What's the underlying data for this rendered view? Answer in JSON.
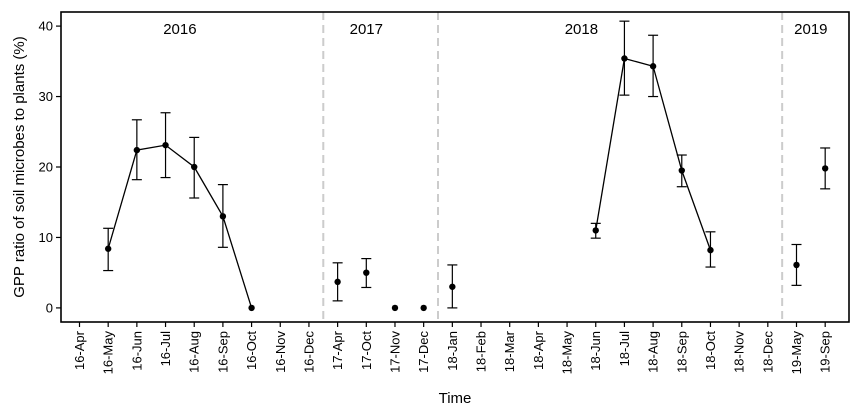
{
  "chart_data": {
    "type": "scatter",
    "xlabel": "Time",
    "ylabel": "GPP ratio of soil microbes to plants (%)",
    "ylim": [
      -2,
      42
    ],
    "y_ticks": [
      0,
      10,
      20,
      30,
      40
    ],
    "categories": [
      "16-Apr",
      "16-May",
      "16-Jun",
      "16-Jul",
      "16-Aug",
      "16-Sep",
      "16-Oct",
      "16-Nov",
      "16-Dec",
      "17-Apr",
      "17-Oct",
      "17-Nov",
      "17-Dec",
      "18-Jan",
      "18-Feb",
      "18-Mar",
      "18-Apr",
      "18-May",
      "18-Jun",
      "18-Jul",
      "18-Aug",
      "18-Sep",
      "18-Oct",
      "18-Nov",
      "18-Dec",
      "19-May",
      "19-Sep"
    ],
    "year_labels": [
      {
        "label": "2016",
        "center_category": 3.5
      },
      {
        "label": "2017",
        "center_category": 10
      },
      {
        "label": "2018",
        "center_category": 17.5
      },
      {
        "label": "2019",
        "center_category": 25.5
      }
    ],
    "dividers_after_category": [
      8,
      12,
      24
    ],
    "grid": false,
    "points": [
      {
        "x": "16-May",
        "y": 8.4,
        "low": 5.3,
        "high": 11.3
      },
      {
        "x": "16-Jun",
        "y": 22.4,
        "low": 18.2,
        "high": 26.7
      },
      {
        "x": "16-Jul",
        "y": 23.1,
        "low": 18.5,
        "high": 27.7
      },
      {
        "x": "16-Aug",
        "y": 20.0,
        "low": 15.6,
        "high": 24.2
      },
      {
        "x": "16-Sep",
        "y": 13.0,
        "low": 8.6,
        "high": 17.5
      },
      {
        "x": "16-Oct",
        "y": 0.0,
        "low": 0.0,
        "high": 0.0
      },
      {
        "x": "17-Apr",
        "y": 3.7,
        "low": 1.0,
        "high": 6.4
      },
      {
        "x": "17-Oct",
        "y": 5.0,
        "low": 2.9,
        "high": 7.0
      },
      {
        "x": "17-Nov",
        "y": 0.0,
        "low": 0.0,
        "high": 0.0
      },
      {
        "x": "17-Dec",
        "y": 0.0,
        "low": 0.0,
        "high": 0.0
      },
      {
        "x": "18-Jan",
        "y": 3.0,
        "low": 0.0,
        "high": 6.1
      },
      {
        "x": "18-Jun",
        "y": 11.0,
        "low": 9.9,
        "high": 12.0
      },
      {
        "x": "18-Jul",
        "y": 35.4,
        "low": 30.2,
        "high": 40.7
      },
      {
        "x": "18-Aug",
        "y": 34.3,
        "low": 30.0,
        "high": 38.7
      },
      {
        "x": "18-Sep",
        "y": 19.5,
        "low": 17.2,
        "high": 21.7
      },
      {
        "x": "18-Oct",
        "y": 8.2,
        "low": 5.8,
        "high": 10.8
      },
      {
        "x": "19-May",
        "y": 6.1,
        "low": 3.2,
        "high": 9.0
      },
      {
        "x": "19-Sep",
        "y": 19.8,
        "low": 16.9,
        "high": 22.7
      }
    ],
    "connected_lines": [
      [
        "16-May",
        "16-Jun",
        "16-Jul",
        "16-Aug",
        "16-Sep",
        "16-Oct"
      ],
      [
        "18-Jun",
        "18-Jul",
        "18-Aug",
        "18-Sep",
        "18-Oct"
      ]
    ],
    "colors": {
      "points": "#000000",
      "lines": "#000000",
      "dividers": "#cccccc",
      "frame": "#000000"
    }
  }
}
